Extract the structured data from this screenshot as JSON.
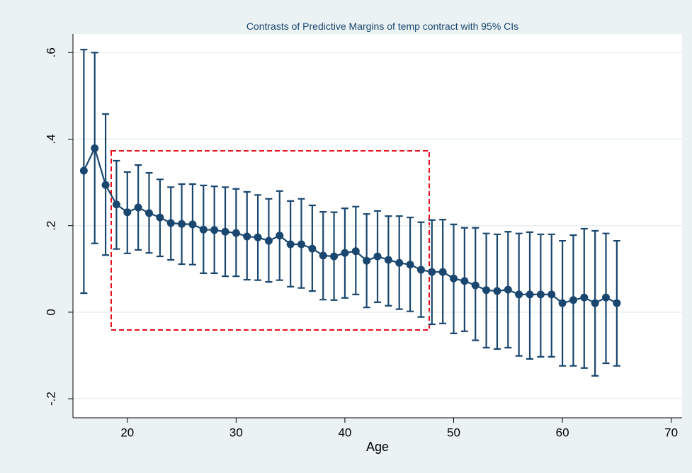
{
  "chart_data": {
    "type": "errorbar",
    "title": "Contrasts of Predictive Margins of temp contract with 95% CIs",
    "x_label": "Age",
    "x": [
      16,
      17,
      18,
      19,
      20,
      21,
      22,
      23,
      24,
      25,
      26,
      27,
      28,
      29,
      30,
      31,
      32,
      33,
      34,
      35,
      36,
      37,
      38,
      39,
      40,
      41,
      42,
      43,
      44,
      45,
      46,
      47,
      48,
      49,
      50,
      51,
      52,
      53,
      54,
      55,
      56,
      57,
      58,
      59,
      60,
      61,
      62,
      63,
      64,
      65
    ],
    "series": [
      {
        "color": "#1a476f",
        "values": [
          0.327,
          0.379,
          0.294,
          0.249,
          0.231,
          0.242,
          0.229,
          0.219,
          0.206,
          0.204,
          0.203,
          0.191,
          0.19,
          0.186,
          0.183,
          0.175,
          0.173,
          0.165,
          0.177,
          0.157,
          0.157,
          0.147,
          0.131,
          0.129,
          0.137,
          0.141,
          0.119,
          0.129,
          0.121,
          0.114,
          0.11,
          0.098,
          0.093,
          0.093,
          0.078,
          0.072,
          0.062,
          0.051,
          0.049,
          0.052,
          0.041,
          0.041,
          0.041,
          0.041,
          0.021,
          0.028,
          0.034,
          0.021,
          0.034,
          0.021
        ],
        "lower": [
          0.044,
          0.159,
          0.132,
          0.146,
          0.136,
          0.144,
          0.137,
          0.129,
          0.121,
          0.111,
          0.11,
          0.09,
          0.09,
          0.083,
          0.083,
          0.075,
          0.074,
          0.07,
          0.074,
          0.059,
          0.056,
          0.049,
          0.029,
          0.028,
          0.033,
          0.041,
          0.011,
          0.023,
          0.015,
          0.007,
          0.002,
          -0.011,
          -0.028,
          -0.026,
          -0.049,
          -0.044,
          -0.065,
          -0.082,
          -0.085,
          -0.082,
          -0.101,
          -0.108,
          -0.103,
          -0.103,
          -0.124,
          -0.124,
          -0.129,
          -0.147,
          -0.118,
          -0.124
        ],
        "upper": [
          0.607,
          0.6,
          0.458,
          0.35,
          0.324,
          0.34,
          0.322,
          0.307,
          0.289,
          0.296,
          0.296,
          0.293,
          0.291,
          0.289,
          0.285,
          0.278,
          0.271,
          0.262,
          0.28,
          0.257,
          0.262,
          0.247,
          0.232,
          0.231,
          0.24,
          0.244,
          0.227,
          0.234,
          0.222,
          0.222,
          0.219,
          0.208,
          0.213,
          0.214,
          0.203,
          0.195,
          0.195,
          0.182,
          0.18,
          0.186,
          0.182,
          0.185,
          0.18,
          0.18,
          0.165,
          0.178,
          0.193,
          0.188,
          0.182,
          0.165
        ]
      }
    ],
    "xlim": [
      15,
      71
    ],
    "xticks": [
      20,
      30,
      40,
      50,
      60,
      70
    ],
    "ylim": [
      -0.244,
      0.643
    ],
    "yticks": [
      {
        "value": -0.2,
        "label": "-.2"
      },
      0,
      {
        "value": 0.2,
        "label": ".2"
      },
      {
        "value": 0.4,
        "label": ".4"
      },
      {
        "value": 0.6,
        "label": ".6"
      }
    ],
    "grid": true
  }
}
